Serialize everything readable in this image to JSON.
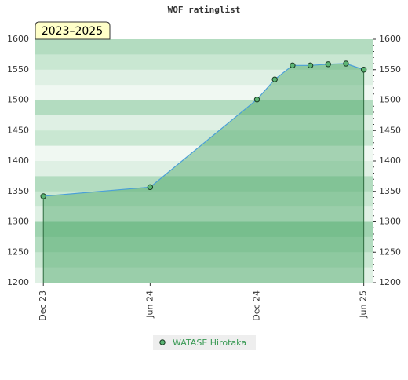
{
  "chart_data": {
    "type": "area-line",
    "title": "WOF ratinglist",
    "annotation": "2023–2025",
    "x": [
      "2023-12",
      "2024-06",
      "2024-12",
      "2025-01",
      "2025-02",
      "2025-03",
      "2025-04",
      "2025-05",
      "2025-06"
    ],
    "series": [
      {
        "name": "WATASE Hirotaka",
        "color": "#4a9fd8",
        "values": [
          1342,
          1357,
          1501,
          1534,
          1557,
          1557,
          1559,
          1560,
          1550
        ]
      }
    ],
    "ylim": [
      1200,
      1600
    ],
    "yticks": [
      1200,
      1250,
      1300,
      1350,
      1400,
      1450,
      1500,
      1550,
      1600
    ],
    "xticks": [
      {
        "value": "2023-12",
        "label": "Dec 23"
      },
      {
        "value": "2024-06",
        "label": "Jun 24"
      },
      {
        "value": "2024-12",
        "label": "Dec 24"
      },
      {
        "value": "2025-06",
        "label": "Jun 25"
      }
    ]
  }
}
